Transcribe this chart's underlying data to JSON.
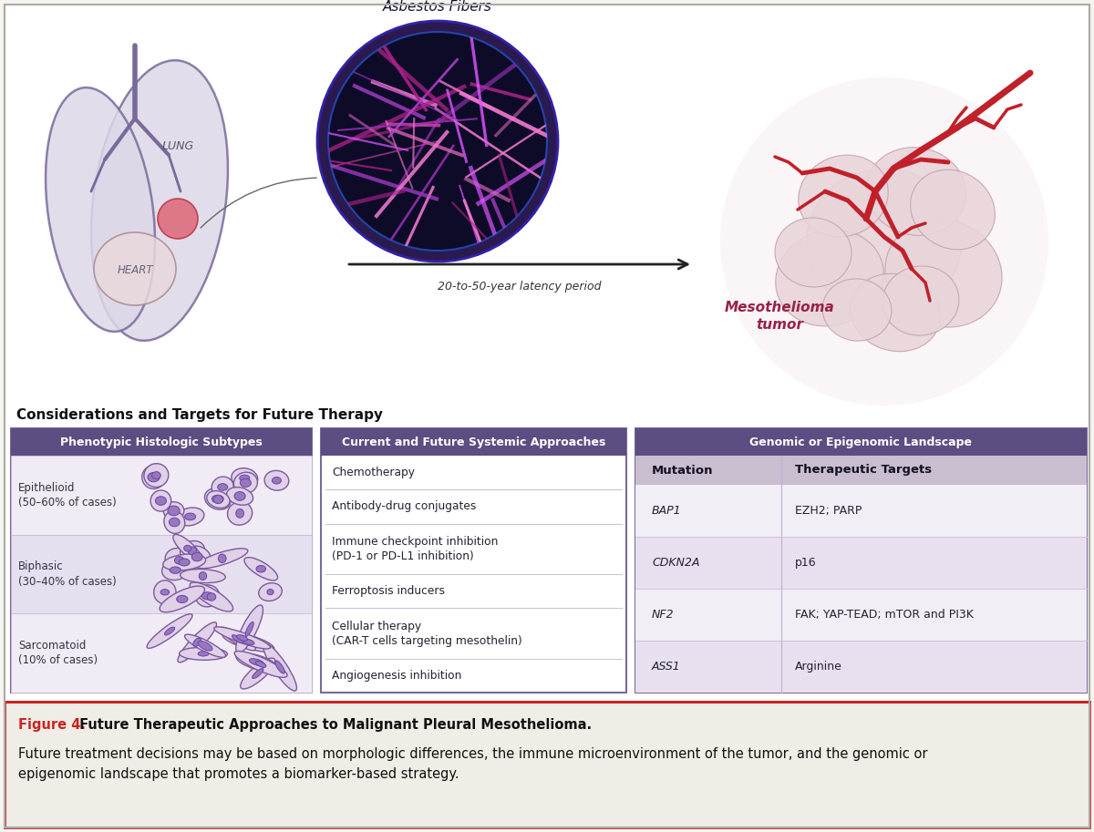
{
  "bg_color": "#f7f4ef",
  "border_color": "#bbbbbb",
  "title_section": "Considerations and Targets for Future Therapy",
  "panel1_header": "Phenotypic Histologic Subtypes",
  "panel1_header_bg": "#5c4d82",
  "panel1_bg": "#ede8f2",
  "panel1_border": "#7a6a9a",
  "panel1_rows": [
    {
      "label": "Epithelioid\n(50–60% of cases)"
    },
    {
      "label": "Biphasic\n(30–40% of cases)"
    },
    {
      "label": "Sarcomatoid\n(10% of cases)"
    }
  ],
  "panel2_header": "Current and Future Systemic Approaches",
  "panel2_header_bg": "#5c4d82",
  "panel2_bg": "#ffffff",
  "panel2_border": "#7a6a9a",
  "panel2_items": [
    "Chemotherapy",
    "Antibody-drug conjugates",
    "Immune checkpoint inhibition\n(PD-1 or PD-L1 inhibition)",
    "Ferroptosis inducers",
    "Cellular therapy\n(CAR-T cells targeting mesothelin)",
    "Angiogenesis inhibition"
  ],
  "panel3_header": "Genomic or Epigenomic Landscape",
  "panel3_header_bg": "#5c4d82",
  "panel3_bg": "#ffffff",
  "panel3_border": "#7a6a9a",
  "panel3_col1_header": "Mutation",
  "panel3_col2_header": "Therapeutic Targets",
  "panel3_subheader_bg": "#c9bdd0",
  "panel3_rows": [
    {
      "mutation": "BAP1",
      "targets": "EZH2; PARP",
      "bg": "#f2eef5"
    },
    {
      "mutation": "CDKN2A",
      "targets": "p16",
      "bg": "#e8e0ee"
    },
    {
      "mutation": "NF2",
      "targets": "FAK; YAP-TEAD; mTOR and PI3K",
      "bg": "#f2eef5"
    },
    {
      "mutation": "ASS1",
      "targets": "Arginine",
      "bg": "#e8e0ee"
    }
  ],
  "caption_label": "Figure 4.",
  "caption_label_color": "#cc2222",
  "caption_bold": " Future Therapeutic Approaches to Malignant Pleural Mesothelioma.",
  "caption_normal": "Future treatment decisions may be based on morphologic differences, the immune microenvironment of the tumor, and the genomic or\nepigenomic landscape that promotes a biomarker-based strategy.",
  "caption_bg": "#f0ece6",
  "caption_border": "#cc2222",
  "inhaled_label": "Inhaled\nAsbestos Fibers",
  "latency_label": "20-to-50-year latency period",
  "lung_label": "LUNG",
  "heart_label": "HEART",
  "mesothelioma_label": "Mesothelioma\ntumor",
  "purple_color": "#5c4d82",
  "vessel_color": "#c0202a"
}
